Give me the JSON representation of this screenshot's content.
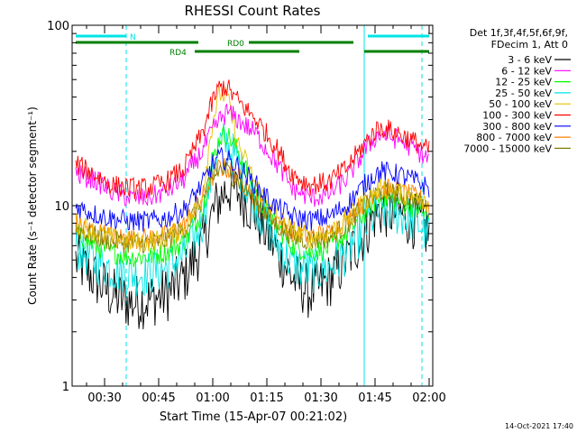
{
  "chart_data": {
    "type": "line",
    "title": "RHESSI Count Rates",
    "xlabel": "Start Time (15-Apr-07 00:21:02)",
    "ylabel": "Count Rate (s⁻¹ detector segment⁻¹)",
    "yscale": "log",
    "ylim": [
      1,
      100
    ],
    "xlim_minutes_after_midnight": [
      21,
      121
    ],
    "x_ticks": [
      "00:30",
      "00:45",
      "01:00",
      "01:15",
      "01:30",
      "01:45",
      "02:00"
    ],
    "y_ticks": [
      "1",
      "10",
      "100"
    ],
    "legend_header": [
      "Det 1f,3f,4f,5f,6f,9f,",
      "FDecim 1, Att 0"
    ],
    "legend_placement": "right",
    "footer_date": "14-Oct-2021 17:40",
    "flags": [
      {
        "label": "N",
        "color": "#00e5e5"
      },
      {
        "label": "RD0",
        "color": "#008000"
      },
      {
        "label": "RD4",
        "color": "#008000"
      }
    ],
    "vertical_markers_times": [
      "00:36",
      "01:42",
      "01:58"
    ],
    "x": [
      "00:22",
      "00:27",
      "00:32",
      "00:37",
      "00:42",
      "00:47",
      "00:52",
      "00:57",
      "01:00",
      "01:02",
      "01:04",
      "01:07",
      "01:12",
      "01:17",
      "01:22",
      "01:27",
      "01:32",
      "01:37",
      "01:42",
      "01:45",
      "01:47",
      "01:52",
      "01:57",
      "02:00"
    ],
    "series": [
      {
        "name": "3 - 6 keV",
        "color": "#000000",
        "values": [
          5.0,
          4.0,
          3.2,
          2.9,
          3.0,
          3.2,
          4.0,
          6.0,
          9.0,
          11.0,
          12.5,
          12.0,
          9.0,
          6.0,
          4.0,
          3.3,
          3.8,
          5.0,
          7.0,
          9.0,
          9.5,
          9.0,
          8.0,
          7.0
        ]
      },
      {
        "name": "6 - 12 keV",
        "color": "#ff00ff",
        "values": [
          15.0,
          14.0,
          12.0,
          11.0,
          11.0,
          12.0,
          14.0,
          20.0,
          26.0,
          30.0,
          33.0,
          30.0,
          25.0,
          18.0,
          12.5,
          11.0,
          11.5,
          14.0,
          20.0,
          24.0,
          25.0,
          23.0,
          20.0,
          18.0
        ]
      },
      {
        "name": "12 - 25 keV",
        "color": "#00ff00",
        "values": [
          7.0,
          6.0,
          5.5,
          5.2,
          5.2,
          5.5,
          6.3,
          9.0,
          18.0,
          24.0,
          25.0,
          20.0,
          12.0,
          8.0,
          6.0,
          5.5,
          5.8,
          7.0,
          9.0,
          10.5,
          11.0,
          10.5,
          9.5,
          8.5
        ]
      },
      {
        "name": "25 - 50 keV",
        "color": "#00e5e5",
        "values": [
          6.0,
          5.0,
          4.5,
          4.2,
          4.2,
          4.5,
          5.3,
          8.0,
          16.0,
          22.0,
          22.0,
          17.0,
          10.0,
          6.5,
          4.8,
          4.3,
          4.5,
          5.5,
          7.5,
          9.0,
          9.5,
          9.0,
          8.0,
          7.0
        ]
      },
      {
        "name": "50 - 100 keV",
        "color": "#e5c000",
        "values": [
          8.0,
          7.2,
          6.6,
          6.3,
          6.3,
          6.6,
          7.5,
          11.0,
          30.0,
          42.0,
          40.0,
          22.0,
          13.0,
          9.0,
          7.3,
          6.6,
          7.0,
          8.3,
          10.5,
          12.0,
          12.5,
          11.8,
          10.8,
          9.8
        ]
      },
      {
        "name": "100 - 300 keV",
        "color": "#ff0000",
        "values": [
          17.0,
          15.0,
          13.0,
          12.5,
          12.5,
          13.5,
          16.0,
          25.0,
          38.0,
          46.0,
          45.0,
          38.0,
          30.0,
          22.0,
          15.0,
          13.0,
          13.5,
          16.0,
          22.0,
          26.0,
          27.0,
          25.0,
          22.0,
          20.0
        ]
      },
      {
        "name": "300 - 800 keV",
        "color": "#0000ff",
        "values": [
          10.0,
          9.0,
          8.5,
          8.2,
          8.2,
          8.5,
          9.5,
          13.0,
          17.0,
          18.5,
          18.0,
          16.5,
          13.0,
          10.0,
          8.7,
          8.3,
          8.6,
          10.0,
          13.0,
          15.0,
          15.5,
          14.8,
          13.5,
          12.5
        ]
      },
      {
        "name": "800 - 7000 keV",
        "color": "#ff8000",
        "values": [
          8.0,
          7.2,
          6.8,
          6.6,
          6.6,
          6.8,
          7.8,
          11.0,
          14.5,
          16.5,
          16.0,
          14.5,
          11.0,
          8.5,
          7.2,
          6.8,
          7.0,
          8.3,
          10.5,
          12.0,
          12.5,
          12.0,
          11.0,
          10.0
        ]
      },
      {
        "name": "7000 - 15000 keV",
        "color": "#808000",
        "values": [
          7.5,
          6.8,
          6.4,
          6.2,
          6.2,
          6.4,
          7.4,
          10.5,
          14.0,
          16.0,
          15.5,
          14.0,
          10.5,
          8.0,
          6.8,
          6.4,
          6.6,
          7.8,
          10.0,
          11.5,
          12.0,
          11.5,
          10.5,
          9.5
        ]
      }
    ]
  }
}
